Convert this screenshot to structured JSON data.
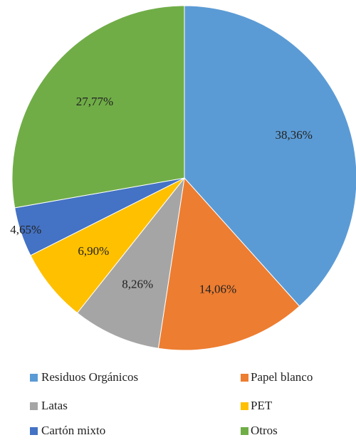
{
  "chart_data": {
    "type": "pie",
    "categories": [
      "Residuos Orgánicos",
      "Papel blanco",
      "Latas",
      "PET",
      "Cartón mixto",
      "Otros"
    ],
    "values": [
      38.36,
      14.06,
      8.26,
      6.9,
      4.65,
      27.77
    ],
    "value_labels": [
      "38,36%",
      "14,06%",
      "8,26%",
      "6,90%",
      "4,65%",
      "27,77%"
    ],
    "colors": [
      "#5b9bd5",
      "#ed7d31",
      "#a5a5a5",
      "#ffc000",
      "#4472c4",
      "#70ad47"
    ],
    "legend": "bottom"
  }
}
